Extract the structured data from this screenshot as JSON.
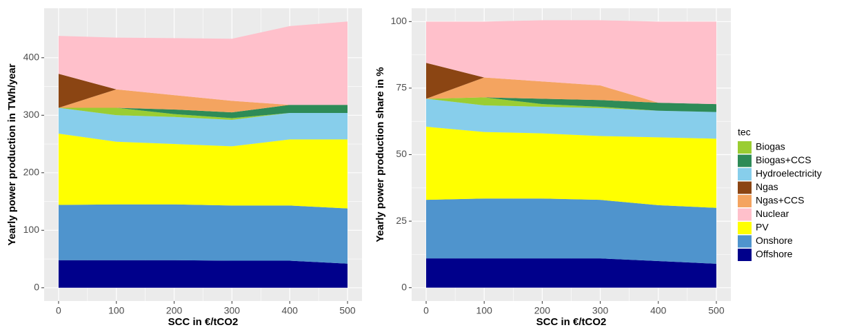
{
  "chart_data": [
    {
      "type": "area",
      "stacked": true,
      "ylabel": "Yearly power production in TWh/year",
      "xlabel": "SCC in €/tCO2",
      "x": [
        0,
        100,
        200,
        300,
        400,
        500
      ],
      "xlim": [
        -25,
        525
      ],
      "xticks": [
        0,
        100,
        200,
        300,
        400,
        500
      ],
      "ylim": [
        -23,
        486
      ],
      "yticks": [
        0,
        100,
        200,
        300,
        400
      ],
      "grid": true,
      "series": [
        {
          "name": "Biogas",
          "color": "#9acd32",
          "values": [
            0,
            13,
            5,
            3,
            0,
            0
          ]
        },
        {
          "name": "Biogas+CCS",
          "color": "#2e8b57",
          "values": [
            0,
            0,
            8,
            10,
            14,
            14
          ]
        },
        {
          "name": "Hydroelectricity",
          "color": "#87ceeb",
          "values": [
            45,
            46,
            47,
            46,
            46,
            46
          ]
        },
        {
          "name": "Ngas",
          "color": "#8b4513",
          "values": [
            59,
            0,
            0,
            0,
            0,
            0
          ]
        },
        {
          "name": "Ngas+CCS",
          "color": "#f4a460",
          "values": [
            0,
            32,
            25,
            20,
            0,
            0
          ]
        },
        {
          "name": "Nuclear",
          "color": "#ffc0cb",
          "values": [
            66,
            90,
            99,
            108,
            137,
            145
          ]
        },
        {
          "name": "PV",
          "color": "#ffff00",
          "values": [
            124,
            109,
            105,
            103,
            115,
            120
          ]
        },
        {
          "name": "Onshore",
          "color": "#4f94cd",
          "values": [
            96,
            97,
            97,
            96,
            96,
            96
          ]
        },
        {
          "name": "Offshore",
          "color": "#00008b",
          "values": [
            48,
            48,
            48,
            47,
            47,
            42
          ]
        }
      ]
    },
    {
      "type": "area",
      "stacked": true,
      "ylabel": "Yearly power production share in %",
      "xlabel": "SCC in €/tCO2",
      "x": [
        0,
        100,
        200,
        300,
        400,
        500
      ],
      "xlim": [
        -25,
        525
      ],
      "xticks": [
        0,
        100,
        200,
        300,
        400,
        500
      ],
      "ylim": [
        -5,
        105
      ],
      "yticks": [
        0,
        25,
        50,
        75,
        100
      ],
      "grid": true,
      "series": [
        {
          "name": "Biogas",
          "color": "#9acd32",
          "values": [
            0,
            3,
            1,
            0.5,
            0,
            0
          ]
        },
        {
          "name": "Biogas+CCS",
          "color": "#2e8b57",
          "values": [
            0,
            0,
            2,
            2.5,
            3,
            3
          ]
        },
        {
          "name": "Hydroelectricity",
          "color": "#87ceeb",
          "values": [
            10.5,
            10,
            10,
            10.5,
            10,
            10
          ]
        },
        {
          "name": "Ngas",
          "color": "#8b4513",
          "values": [
            13.5,
            0,
            0,
            0,
            0,
            0
          ]
        },
        {
          "name": "Ngas+CCS",
          "color": "#f4a460",
          "values": [
            0,
            7.5,
            6.5,
            5.5,
            0,
            0
          ]
        },
        {
          "name": "Nuclear",
          "color": "#ffc0cb",
          "values": [
            15.5,
            21,
            23,
            24.5,
            30.5,
            31
          ]
        },
        {
          "name": "PV",
          "color": "#ffff00",
          "values": [
            27.5,
            25,
            24.5,
            24,
            25.5,
            26
          ]
        },
        {
          "name": "Onshore",
          "color": "#4f94cd",
          "values": [
            22,
            22.5,
            22.5,
            22,
            21,
            21
          ]
        },
        {
          "name": "Offshore",
          "color": "#00008b",
          "values": [
            11,
            11,
            11,
            11,
            10,
            9
          ]
        }
      ]
    }
  ],
  "legend": {
    "title": "tec"
  }
}
